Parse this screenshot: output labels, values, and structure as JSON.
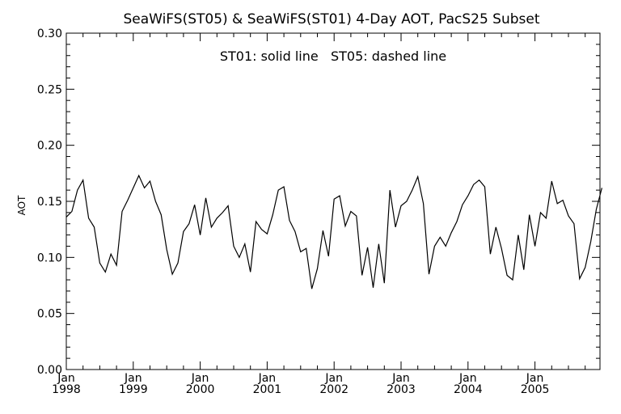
{
  "chart_data": {
    "type": "line",
    "title": "SeaWiFS(ST05) & SeaWiFS(ST01) 4-Day AOT, PacS25 Subset",
    "annotation": "ST01: solid line   ST05: dashed line",
    "xlabel": "",
    "ylabel": "AOT",
    "x_range": [
      "1998-01",
      "2005-12"
    ],
    "ylim": [
      0,
      0.3
    ],
    "y_ticks": [
      "0.00",
      "0.05",
      "0.10",
      "0.15",
      "0.20",
      "0.25",
      "0.30"
    ],
    "x_ticks": [
      {
        "month": "Jan",
        "year": "1998"
      },
      {
        "month": "Jan",
        "year": "1999"
      },
      {
        "month": "Jan",
        "year": "2000"
      },
      {
        "month": "Jan",
        "year": "2001"
      },
      {
        "month": "Jan",
        "year": "2002"
      },
      {
        "month": "Jan",
        "year": "2003"
      },
      {
        "month": "Jan",
        "year": "2004"
      },
      {
        "month": "Jan",
        "year": "2005"
      }
    ],
    "grid": false,
    "series": [
      {
        "style": "solid",
        "color": "#000000",
        "values": [
          0.136,
          0.141,
          0.16,
          0.169,
          0.135,
          0.127,
          0.095,
          0.087,
          0.103,
          0.093,
          0.141,
          0.151,
          0.162,
          0.173,
          0.162,
          0.168,
          0.15,
          0.138,
          0.107,
          0.085,
          0.095,
          0.123,
          0.13,
          0.147,
          0.12,
          0.153,
          0.127,
          0.135,
          0.14,
          0.146,
          0.11,
          0.1,
          0.112,
          0.087,
          0.132,
          0.125,
          0.121,
          0.138,
          0.16,
          0.163,
          0.133,
          0.123,
          0.105,
          0.108,
          0.072,
          0.09,
          0.124,
          0.101,
          0.152,
          0.155,
          0.128,
          0.141,
          0.137,
          0.084,
          0.109,
          0.073,
          0.112,
          0.077,
          0.16,
          0.127,
          0.146,
          0.15,
          0.16,
          0.172,
          0.148,
          0.085,
          0.11,
          0.118,
          0.11,
          0.122,
          0.132,
          0.147,
          0.155,
          0.165,
          0.169,
          0.163,
          0.103,
          0.127,
          0.108,
          0.084,
          0.08,
          0.12,
          0.089,
          0.138,
          0.11,
          0.14,
          0.135,
          0.168,
          0.148,
          0.151,
          0.137,
          0.13,
          0.081,
          0.091,
          0.114,
          0.143,
          0.162
        ]
      }
    ]
  }
}
